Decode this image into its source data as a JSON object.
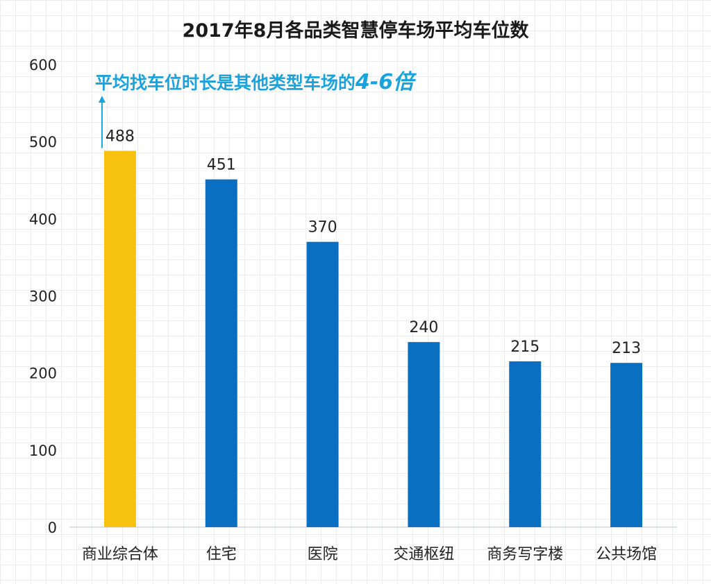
{
  "chart_data": {
    "type": "bar",
    "title": "2017年8月各品类智慧停车场平均车位数",
    "categories": [
      "商业综合体",
      "住宅",
      "医院",
      "交通枢纽",
      "商务写字楼",
      "公共场馆"
    ],
    "values": [
      488,
      451,
      370,
      240,
      215,
      213
    ],
    "ylim": [
      0,
      600
    ],
    "yticks": [
      0,
      100,
      200,
      300,
      400,
      500,
      600
    ],
    "xlabel": "",
    "ylabel": "",
    "grid": false,
    "highlight_index": 0,
    "colors": {
      "default": "#0a6fc0",
      "highlight": "#f6c20f",
      "annotation": "#1aa2dc",
      "axis": "#cfd6dd"
    },
    "annotation": {
      "text": "平均找车位时长是其他类型车场的",
      "emphasis": "4-6倍",
      "target_index": 0
    }
  }
}
